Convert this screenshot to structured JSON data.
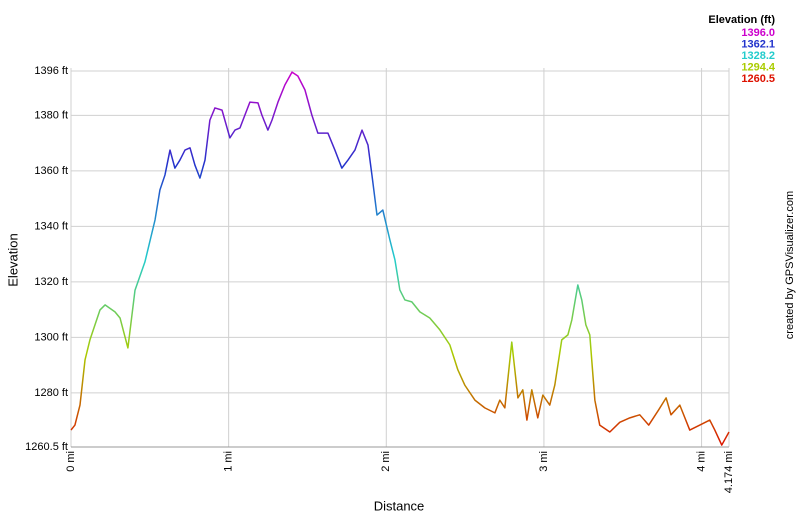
{
  "chart_data": {
    "type": "line",
    "x_label": "Distance",
    "y_label": "Elevation",
    "credit": "created by GPSVisualizer.com",
    "color_scale": {
      "title": "Elevation (ft)",
      "stops": [
        {
          "value": 1396.0,
          "label": "1396.0",
          "color": "#cc00cc"
        },
        {
          "value": 1362.1,
          "label": "1362.1",
          "color": "#2233cc"
        },
        {
          "value": 1328.2,
          "label": "1328.2",
          "color": "#22cccc"
        },
        {
          "value": 1294.4,
          "label": "1294.4",
          "color": "#aacc00"
        },
        {
          "value": 1260.5,
          "label": "1260.5",
          "color": "#dd1100"
        }
      ]
    },
    "grid": true,
    "xlim": [
      0,
      4.174
    ],
    "ylim": [
      1260.5,
      1396
    ],
    "xticks": [
      {
        "value": 0,
        "label": "0 mi"
      },
      {
        "value": 1,
        "label": "1 mi"
      },
      {
        "value": 2,
        "label": "2 mi"
      },
      {
        "value": 3,
        "label": "3 mi"
      },
      {
        "value": 4,
        "label": "4 mi"
      },
      {
        "value": 4.174,
        "label": "4.174 mi"
      }
    ],
    "yticks": [
      {
        "value": 1260.5,
        "label": "1260.5 ft"
      },
      {
        "value": 1280,
        "label": "1280 ft"
      },
      {
        "value": 1300,
        "label": "1300 ft"
      },
      {
        "value": 1320,
        "label": "1320 ft"
      },
      {
        "value": 1340,
        "label": "1340 ft"
      },
      {
        "value": 1360,
        "label": "1360 ft"
      },
      {
        "value": 1380,
        "label": "1380 ft"
      },
      {
        "value": 1396,
        "label": "1396 ft"
      }
    ],
    "x": [
      0,
      0.025,
      0.057,
      0.089,
      0.12,
      0.184,
      0.216,
      0.279,
      0.311,
      0.361,
      0.406,
      0.469,
      0.533,
      0.564,
      0.596,
      0.628,
      0.659,
      0.691,
      0.723,
      0.755,
      0.786,
      0.818,
      0.85,
      0.881,
      0.913,
      0.958,
      1.008,
      1.04,
      1.072,
      1.103,
      1.135,
      1.186,
      1.211,
      1.249,
      1.275,
      1.313,
      1.357,
      1.402,
      1.439,
      1.484,
      1.528,
      1.566,
      1.63,
      1.674,
      1.718,
      1.757,
      1.801,
      1.846,
      1.884,
      1.909,
      1.941,
      1.978,
      2.023,
      2.055,
      2.086,
      2.118,
      2.162,
      2.213,
      2.276,
      2.34,
      2.403,
      2.454,
      2.498,
      2.562,
      2.625,
      2.689,
      2.72,
      2.752,
      2.796,
      2.835,
      2.866,
      2.892,
      2.923,
      2.961,
      2.993,
      3.037,
      3.069,
      3.113,
      3.152,
      3.177,
      3.215,
      3.24,
      3.266,
      3.291,
      3.323,
      3.354,
      3.418,
      3.481,
      3.545,
      3.608,
      3.665,
      3.728,
      3.775,
      3.806,
      3.862,
      3.925,
      3.989,
      4.052,
      4.084,
      4.128,
      4.174
    ],
    "values": [
      1266.6,
      1268.4,
      1275.6,
      1291.9,
      1299.1,
      1309.9,
      1311.7,
      1309.2,
      1307.0,
      1296.2,
      1317.0,
      1327.2,
      1342.3,
      1353.1,
      1358.5,
      1367.5,
      1361.0,
      1363.9,
      1367.5,
      1368.3,
      1362.1,
      1357.4,
      1363.9,
      1378.3,
      1382.7,
      1381.9,
      1371.9,
      1374.7,
      1375.5,
      1380.1,
      1384.8,
      1384.5,
      1380.1,
      1374.7,
      1378.3,
      1384.8,
      1391.0,
      1395.6,
      1394.2,
      1389.2,
      1380.1,
      1373.6,
      1373.6,
      1367.5,
      1361.0,
      1363.9,
      1367.5,
      1374.7,
      1369.3,
      1358.5,
      1344.1,
      1345.9,
      1335.1,
      1327.9,
      1317.1,
      1313.5,
      1312.8,
      1309.2,
      1307.0,
      1302.7,
      1297.3,
      1288.3,
      1282.8,
      1277.4,
      1274.6,
      1272.8,
      1277.4,
      1274.6,
      1298.3,
      1278.2,
      1281.1,
      1270.2,
      1281.1,
      1271.0,
      1279.2,
      1275.6,
      1282.8,
      1299.1,
      1300.9,
      1306.3,
      1318.9,
      1313.5,
      1304.5,
      1300.9,
      1277.4,
      1268.4,
      1265.9,
      1269.4,
      1271.0,
      1272.1,
      1268.4,
      1273.9,
      1278.2,
      1272.1,
      1275.6,
      1266.6,
      1268.4,
      1270.2,
      1266.6,
      1261.2,
      1265.9
    ]
  }
}
